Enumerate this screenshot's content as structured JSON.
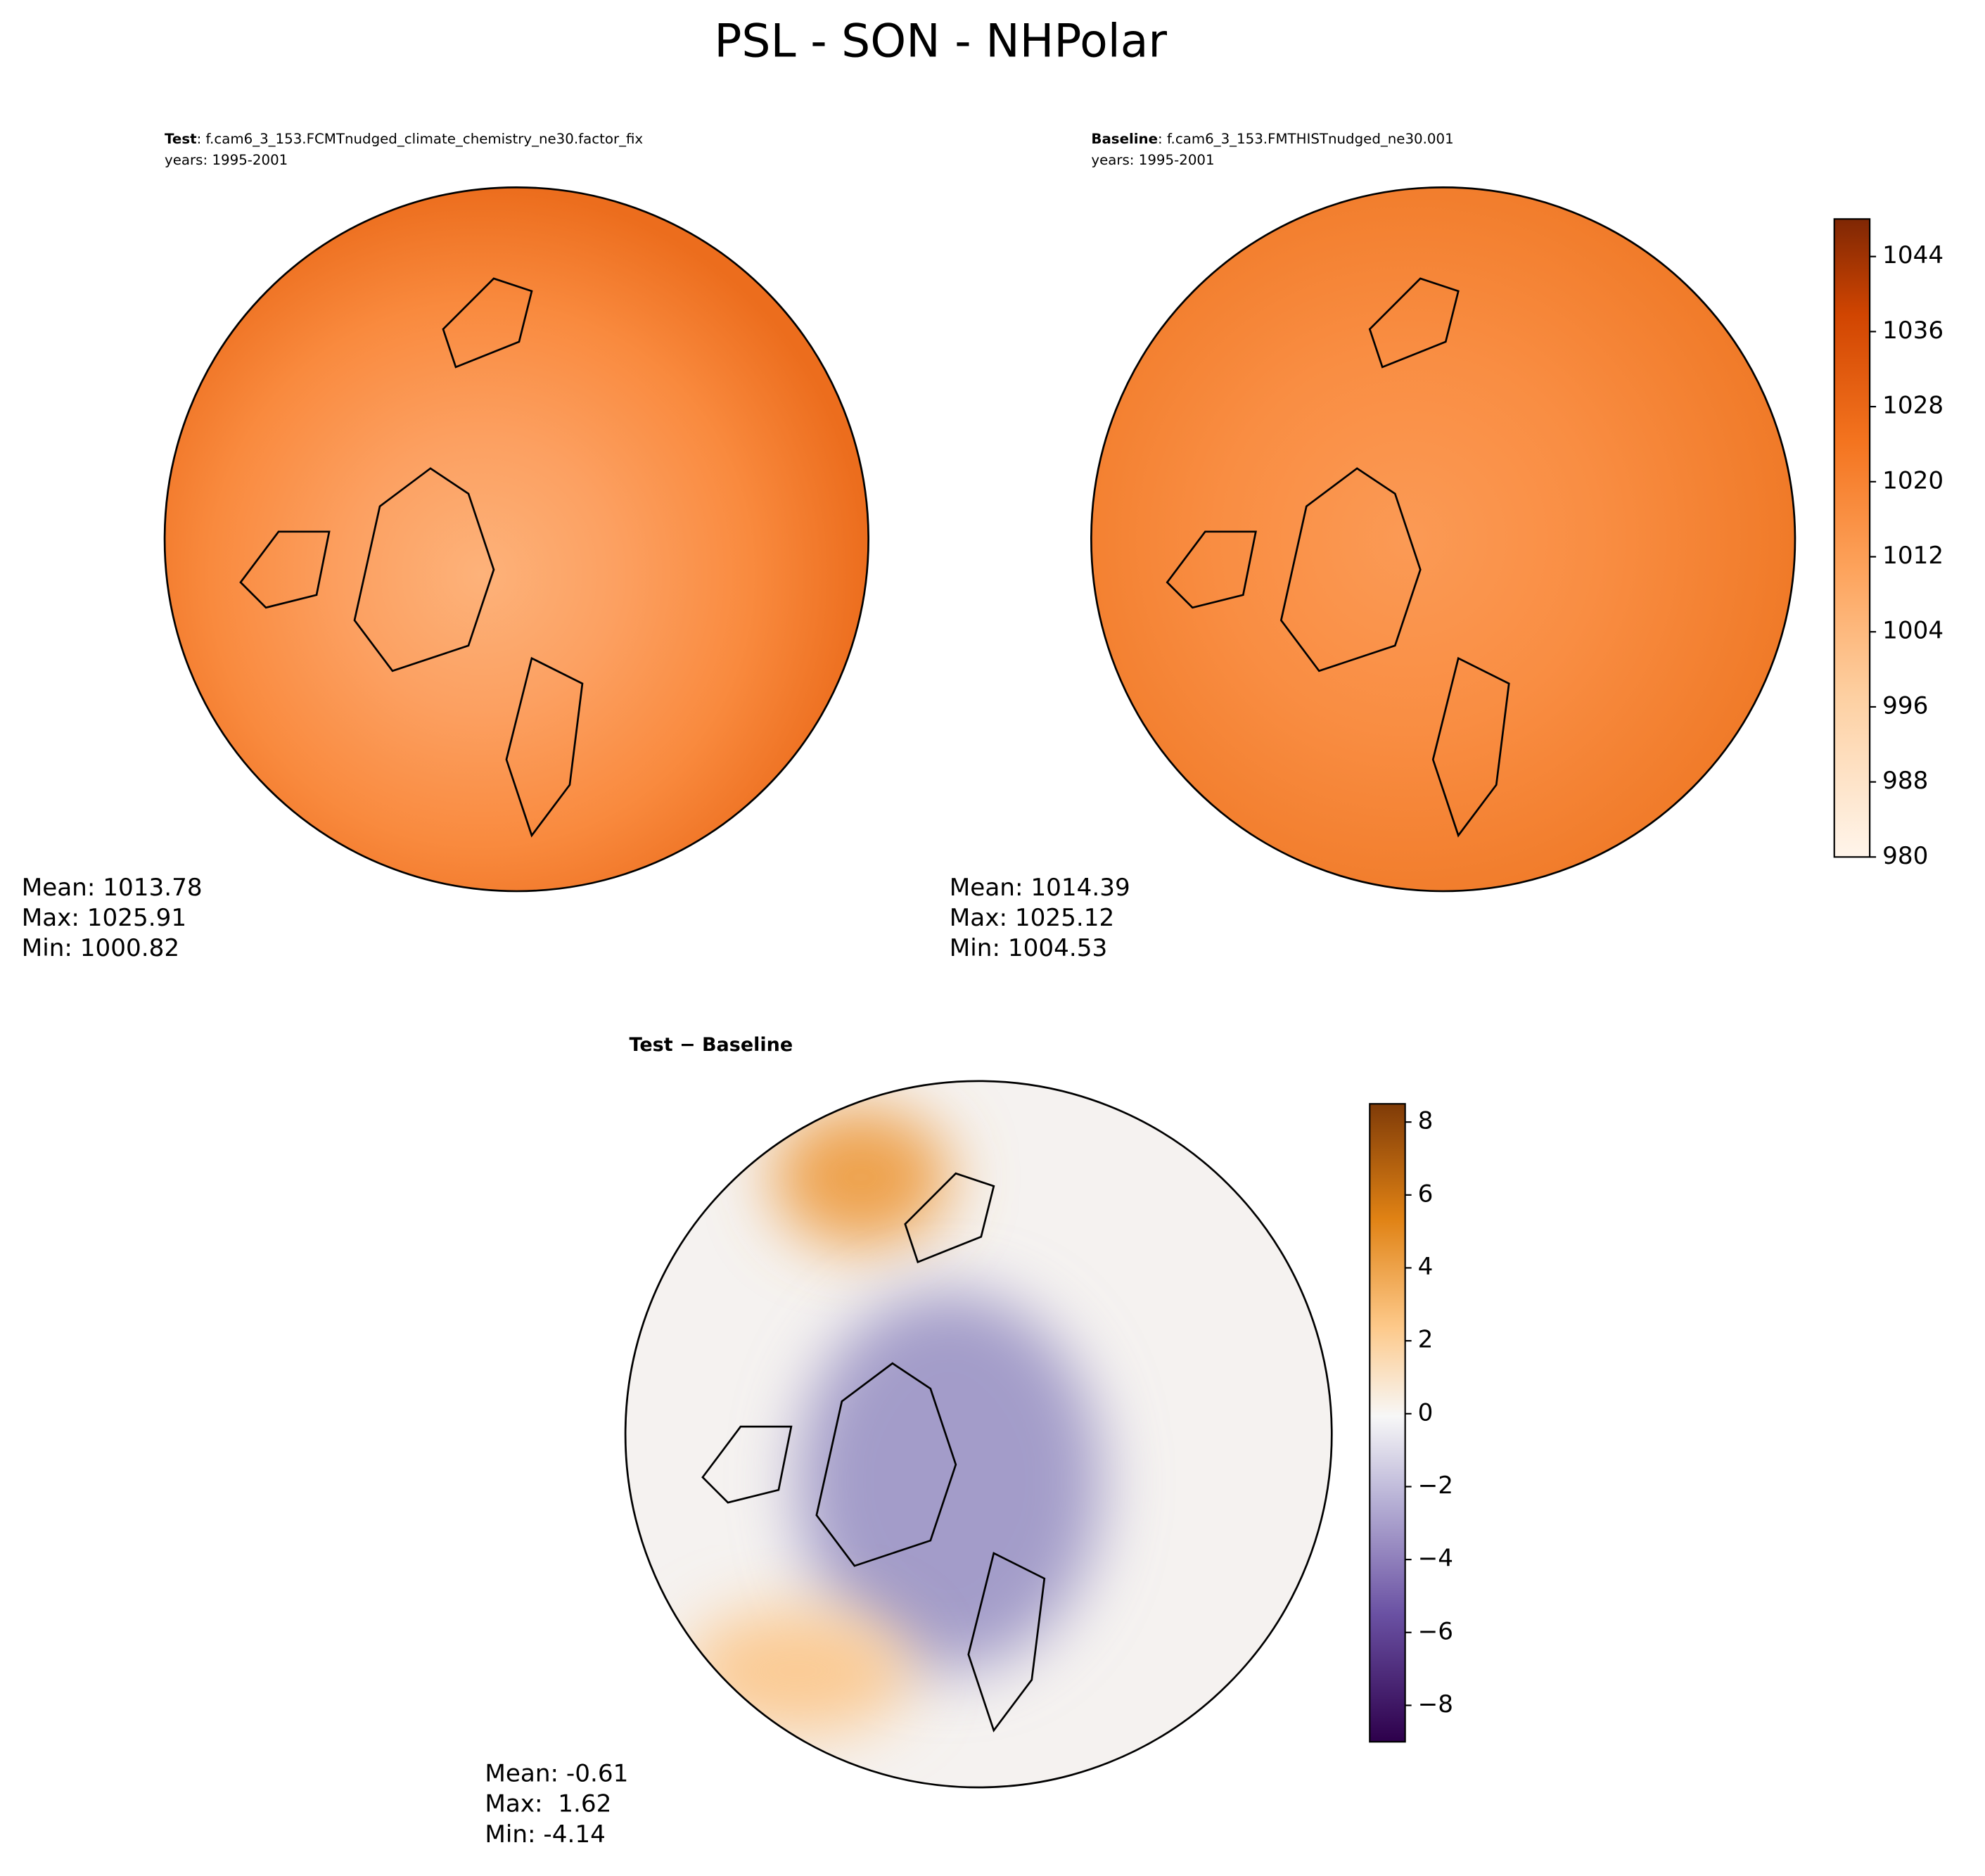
{
  "title": "PSL - SON - NHPolar",
  "panels": [
    {
      "label": "Test",
      "case": ": f.cam6_3_153.FCMTnudged_climate_chemistry_ne30.factor_fix",
      "years": "years: 1995-2001",
      "stats": [
        "Mean: 1013.78",
        "Max: 1025.91",
        "Min: 1000.82"
      ]
    },
    {
      "label": "Baseline",
      "case": ": f.cam6_3_153.FMTHISTnudged_ne30.001",
      "years": "years: 1995-2001",
      "stats": [
        "Mean: 1014.39",
        "Max: 1025.12",
        "Min: 1004.53"
      ]
    },
    {
      "label": "Test − Baseline",
      "stats": [
        "Mean: -0.61",
        "Max:  1.62",
        "Min: -4.14"
      ]
    }
  ],
  "colorbars": [
    {
      "lim": [
        980,
        1048
      ],
      "ticks": [
        980,
        988,
        996,
        1004,
        1012,
        1020,
        1028,
        1036,
        1044
      ]
    },
    {
      "lim": [
        -9,
        8.5
      ],
      "ticks": [
        {
          "value": -8,
          "label": "−8"
        },
        {
          "value": -6,
          "label": "−6"
        },
        {
          "value": -4,
          "label": "−4"
        },
        {
          "value": -2,
          "label": "−2"
        },
        0,
        2,
        4,
        6,
        8
      ]
    }
  ]
}
